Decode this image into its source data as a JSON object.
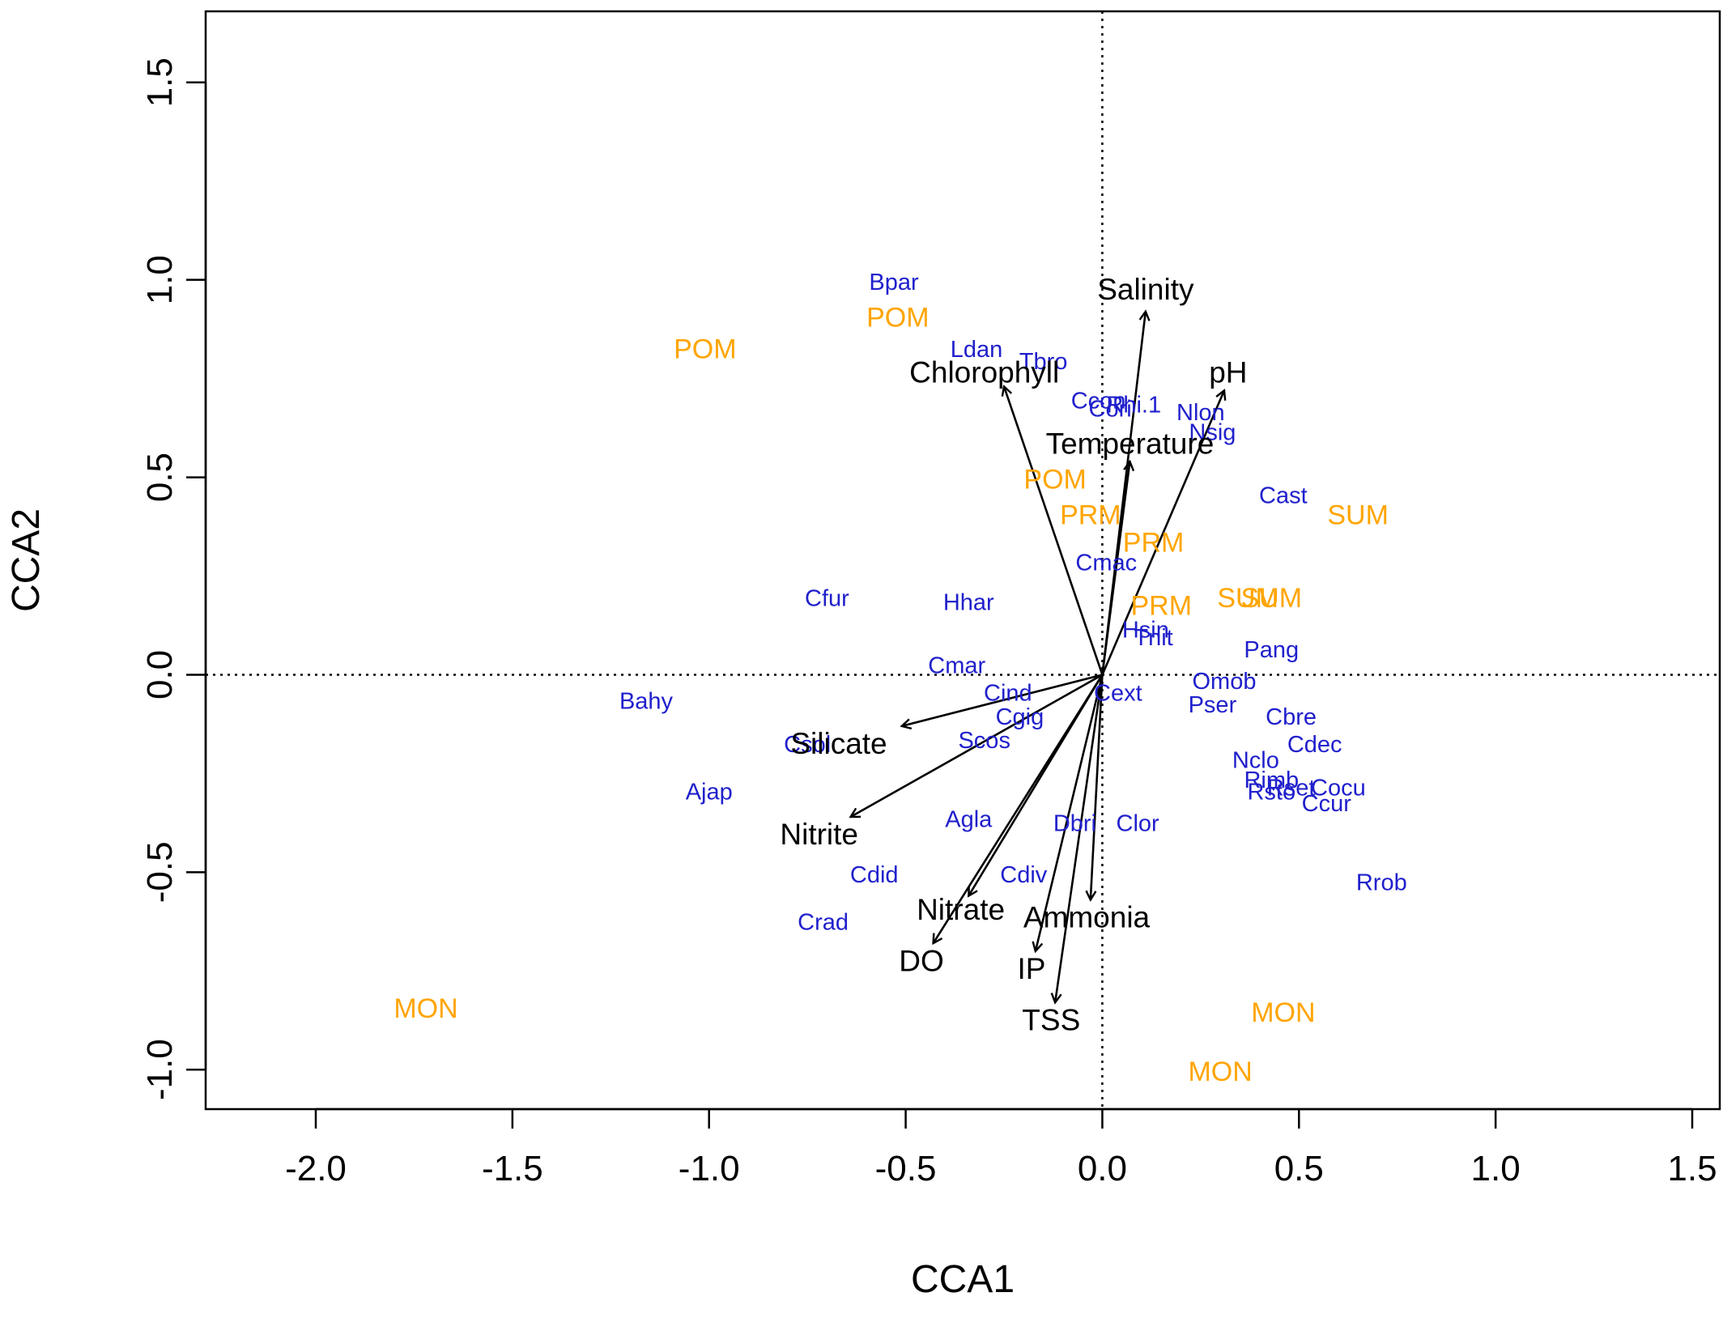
{
  "chart_data": {
    "type": "scatter",
    "xlabel": "CCA1",
    "ylabel": "CCA2",
    "xlim": [
      -2.28,
      1.57
    ],
    "ylim": [
      -1.1,
      1.68
    ],
    "xticks": [
      "-2.0",
      "-1.5",
      "-1.0",
      "-0.5",
      "0.0",
      "0.5",
      "1.0",
      "1.5"
    ],
    "xtick_values": [
      -2.0,
      -1.5,
      -1.0,
      -0.5,
      0.0,
      0.5,
      1.0,
      1.5
    ],
    "yticks": [
      "-1.0",
      "-0.5",
      "0.0",
      "0.5",
      "1.0",
      "1.5"
    ],
    "ytick_values": [
      -1.0,
      -0.5,
      0.0,
      0.5,
      1.0,
      1.5
    ],
    "reference_lines": {
      "x": 0,
      "y": 0,
      "style": "dotted"
    },
    "colors": {
      "species": "#2020cc",
      "samples": "#ffa500",
      "environment": "#000000"
    },
    "species": [
      {
        "label": "Bpar",
        "x": -0.53,
        "y": 0.99
      },
      {
        "label": "Ldan",
        "x": -0.32,
        "y": 0.82
      },
      {
        "label": "Tbro",
        "x": -0.15,
        "y": 0.79
      },
      {
        "label": "Ccon",
        "x": -0.01,
        "y": 0.69
      },
      {
        "label": "Cori",
        "x": 0.02,
        "y": 0.67
      },
      {
        "label": "Rhi.1",
        "x": 0.08,
        "y": 0.68
      },
      {
        "label": "Nlon",
        "x": 0.25,
        "y": 0.66
      },
      {
        "label": "Nsig",
        "x": 0.28,
        "y": 0.61
      },
      {
        "label": "Cast",
        "x": 0.46,
        "y": 0.45
      },
      {
        "label": "Cmac",
        "x": 0.01,
        "y": 0.28
      },
      {
        "label": "Cfur",
        "x": -0.7,
        "y": 0.19
      },
      {
        "label": "Hhar",
        "x": -0.34,
        "y": 0.18
      },
      {
        "label": "Hsin",
        "x": 0.11,
        "y": 0.11
      },
      {
        "label": "Tnit",
        "x": 0.13,
        "y": 0.09
      },
      {
        "label": "Pang",
        "x": 0.43,
        "y": 0.06
      },
      {
        "label": "Cmar",
        "x": -0.37,
        "y": 0.02
      },
      {
        "label": "Omob",
        "x": 0.31,
        "y": -0.02
      },
      {
        "label": "Cext",
        "x": 0.04,
        "y": -0.05
      },
      {
        "label": "Cind",
        "x": -0.24,
        "y": -0.05
      },
      {
        "label": "Pser",
        "x": 0.28,
        "y": -0.08
      },
      {
        "label": "Bahy",
        "x": -1.16,
        "y": -0.07
      },
      {
        "label": "Cbre",
        "x": 0.48,
        "y": -0.11
      },
      {
        "label": "Cgig",
        "x": -0.21,
        "y": -0.11
      },
      {
        "label": "Cdec",
        "x": 0.54,
        "y": -0.18
      },
      {
        "label": "Scos",
        "x": -0.3,
        "y": -0.17
      },
      {
        "label": "Csol",
        "x": -0.75,
        "y": -0.18
      },
      {
        "label": "Nclo",
        "x": 0.39,
        "y": -0.22
      },
      {
        "label": "Rimb",
        "x": 0.43,
        "y": -0.27
      },
      {
        "label": "Rsto",
        "x": 0.43,
        "y": -0.3
      },
      {
        "label": "Rset",
        "x": 0.48,
        "y": -0.29
      },
      {
        "label": "Cocu",
        "x": 0.6,
        "y": -0.29
      },
      {
        "label": "Ccur",
        "x": 0.57,
        "y": -0.33
      },
      {
        "label": "Ajap",
        "x": -1.0,
        "y": -0.3
      },
      {
        "label": "Agla",
        "x": -0.34,
        "y": -0.37
      },
      {
        "label": "Dbri",
        "x": -0.07,
        "y": -0.38
      },
      {
        "label": "Clor",
        "x": 0.09,
        "y": -0.38
      },
      {
        "label": "Cdid",
        "x": -0.58,
        "y": -0.51
      },
      {
        "label": "Cdiv",
        "x": -0.2,
        "y": -0.51
      },
      {
        "label": "Rrob",
        "x": 0.71,
        "y": -0.53
      },
      {
        "label": "Crad",
        "x": -0.71,
        "y": -0.63
      }
    ],
    "samples": [
      {
        "label": "POM",
        "x": -0.52,
        "y": 0.9
      },
      {
        "label": "POM",
        "x": -1.01,
        "y": 0.82
      },
      {
        "label": "POM",
        "x": -0.12,
        "y": 0.49
      },
      {
        "label": "PRM",
        "x": -0.03,
        "y": 0.4
      },
      {
        "label": "PRM",
        "x": 0.13,
        "y": 0.33
      },
      {
        "label": "PRM",
        "x": 0.15,
        "y": 0.17
      },
      {
        "label": "SUM",
        "x": 0.65,
        "y": 0.4
      },
      {
        "label": "SUM",
        "x": 0.37,
        "y": 0.19
      },
      {
        "label": "SUM",
        "x": 0.43,
        "y": 0.19
      },
      {
        "label": "MON",
        "x": -1.72,
        "y": -0.85
      },
      {
        "label": "MON",
        "x": 0.46,
        "y": -0.86
      },
      {
        "label": "MON",
        "x": 0.3,
        "y": -1.01
      }
    ],
    "environment": [
      {
        "label": "Salinity",
        "x": 0.11,
        "y": 0.92,
        "lx": 0.11,
        "ly": 0.97
      },
      {
        "label": "pH",
        "x": 0.31,
        "y": 0.72,
        "lx": 0.32,
        "ly": 0.76
      },
      {
        "label": "Chlorophyll",
        "x": -0.25,
        "y": 0.73,
        "lx": -0.3,
        "ly": 0.76
      },
      {
        "label": "Temperature",
        "x": 0.07,
        "y": 0.54,
        "lx": 0.07,
        "ly": 0.58
      },
      {
        "label": "Silicate",
        "x": -0.51,
        "y": -0.13,
        "lx": -0.67,
        "ly": -0.18
      },
      {
        "label": "Nitrite",
        "x": -0.64,
        "y": -0.36,
        "lx": -0.72,
        "ly": -0.41
      },
      {
        "label": "Nitrate",
        "x": -0.34,
        "y": -0.56,
        "lx": -0.36,
        "ly": -0.6
      },
      {
        "label": "Ammonia",
        "x": -0.03,
        "y": -0.57,
        "lx": -0.04,
        "ly": -0.62
      },
      {
        "label": "DO",
        "x": -0.43,
        "y": -0.68,
        "lx": -0.46,
        "ly": -0.73
      },
      {
        "label": "IP",
        "x": -0.17,
        "y": -0.7,
        "lx": -0.18,
        "ly": -0.75
      },
      {
        "label": "TSS",
        "x": -0.12,
        "y": -0.83,
        "lx": -0.13,
        "ly": -0.88
      }
    ]
  }
}
